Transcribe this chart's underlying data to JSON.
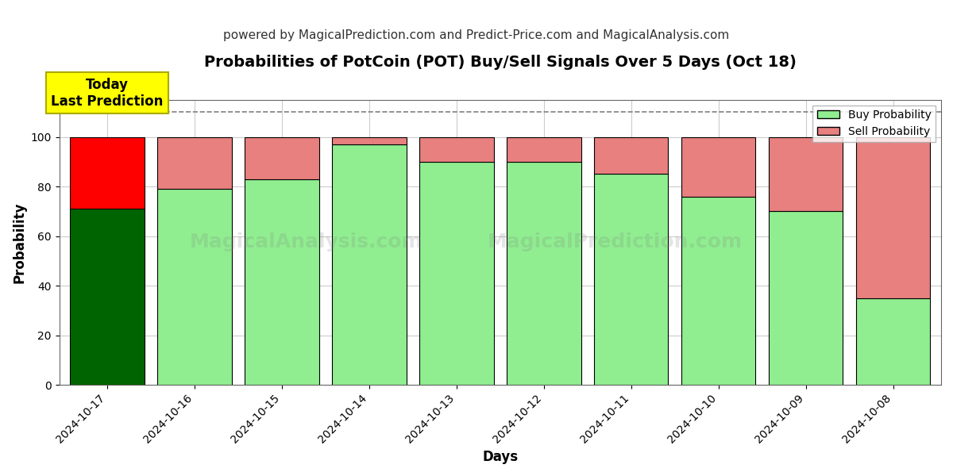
{
  "title": "Probabilities of PotCoin (POT) Buy/Sell Signals Over 5 Days (Oct 18)",
  "subtitle": "powered by MagicalPrediction.com and Predict-Price.com and MagicalAnalysis.com",
  "xlabel": "Days",
  "ylabel": "Probability",
  "categories": [
    "2024-10-17",
    "2024-10-16",
    "2024-10-15",
    "2024-10-14",
    "2024-10-13",
    "2024-10-12",
    "2024-10-11",
    "2024-10-10",
    "2024-10-09",
    "2024-10-08"
  ],
  "buy_values": [
    71,
    79,
    83,
    97,
    90,
    90,
    85,
    76,
    70,
    35
  ],
  "sell_values": [
    29,
    21,
    17,
    3,
    10,
    10,
    15,
    24,
    30,
    65
  ],
  "buy_color_today": "#006400",
  "sell_color_today": "#ff0000",
  "buy_color_rest": "#90ee90",
  "sell_color_rest": "#e88080",
  "bar_edge_color": "#000000",
  "bar_edge_width": 0.8,
  "ylim": [
    0,
    115
  ],
  "yticks": [
    0,
    20,
    40,
    60,
    80,
    100
  ],
  "dashed_line_y": 110,
  "annotation_text": "Today\nLast Prediction",
  "annotation_bg": "#ffff00",
  "watermark1": "MagicalAnalysis.com",
  "watermark2": "MagicalPrediction.com",
  "legend_buy": "Buy Probability",
  "legend_sell": "Sell Probability",
  "bg_color": "#ffffff",
  "grid_color": "#cccccc",
  "title_fontsize": 14,
  "subtitle_fontsize": 11,
  "axis_label_fontsize": 12,
  "tick_fontsize": 10
}
